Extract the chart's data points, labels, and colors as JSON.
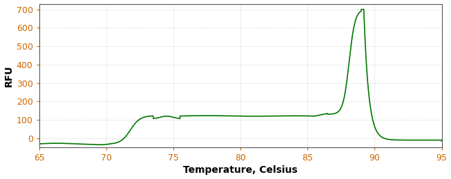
{
  "title": "",
  "xlabel": "Temperature, Celsius",
  "ylabel": "RFU",
  "xlim": [
    65,
    95
  ],
  "ylim": [
    -50,
    730
  ],
  "xticks": [
    65,
    70,
    75,
    80,
    85,
    90,
    95
  ],
  "yticks": [
    0,
    100,
    200,
    300,
    400,
    500,
    600,
    700
  ],
  "line_color": "#007700",
  "background_color": "#ffffff",
  "grid_color": "#888888",
  "grid_dot_size": 0.5,
  "xlabel_fontsize": 10,
  "ylabel_fontsize": 10,
  "tick_label_color": "#cc6600",
  "tick_label_fontsize": 9,
  "axis_color": "#444444",
  "spine_color": "#555555"
}
